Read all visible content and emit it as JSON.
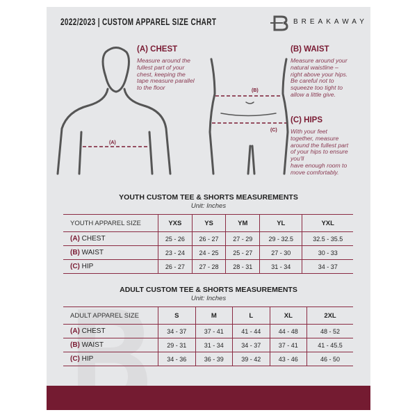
{
  "header": {
    "title": "2022/2023  |  CUSTOM APPAREL SIZE CHART",
    "brand": "BREAKAWAY",
    "logo_letter": "B"
  },
  "guide": {
    "chest": {
      "heading": "(A) CHEST",
      "text": "Measure around the\nfullest part of your\nchest, keeping the\ntape measure parallel\nto the floor",
      "marker": "(A)"
    },
    "waist": {
      "heading": "(B) WAIST",
      "text": "Measure around your\nnatural waistline –\nright above your hips.\nBe careful not to\nsqueeze too tight to\nallow a little give.",
      "marker": "(B)"
    },
    "hips": {
      "heading": "(C) HIPS",
      "text": "With your feet\ntogether, measure\naround the fullest part\nof your hips to ensure\nyou'll\nhave enough room to\nmove comfortably.",
      "marker": "(C)"
    }
  },
  "colors": {
    "accent": "#741b31",
    "panel": "#e6e7e9"
  },
  "youth": {
    "title": "YOUTH CUSTOM TEE & SHORTS MEASUREMENTS",
    "unit": "Unit: Inches",
    "header": "YOUTH APPAREL SIZE",
    "sizes": [
      "YXS",
      "YS",
      "YM",
      "YL",
      "YXL"
    ],
    "rows": [
      {
        "key": "(A)",
        "label": "CHEST",
        "values": [
          "25 - 26",
          "26 - 27",
          "27 - 29",
          "29 - 32.5",
          "32.5 - 35.5"
        ]
      },
      {
        "key": "(B)",
        "label": "WAIST",
        "values": [
          "23 - 24",
          "24 - 25",
          "25 - 27",
          "27 - 30",
          "30 - 33"
        ]
      },
      {
        "key": "(C)",
        "label": "HIP",
        "values": [
          "26 - 27",
          "27 - 28",
          "28 - 31",
          "31 - 34",
          "34 - 37"
        ]
      }
    ]
  },
  "adult": {
    "title": "ADULT CUSTOM TEE & SHORTS MEASUREMENTS",
    "unit": "Unit: Inches",
    "header": "ADULT APPAREL SIZE",
    "sizes": [
      "S",
      "M",
      "L",
      "XL",
      "2XL"
    ],
    "rows": [
      {
        "key": "(A)",
        "label": "CHEST",
        "values": [
          "34 - 37",
          "37 - 41",
          "41 - 44",
          "44 - 48",
          "48 - 52"
        ]
      },
      {
        "key": "(B)",
        "label": "WAIST",
        "values": [
          "29 - 31",
          "31 - 34",
          "34 - 37",
          "37 - 41",
          "41 - 45.5"
        ]
      },
      {
        "key": "(C)",
        "label": "HIP",
        "values": [
          "34 - 36",
          "36 - 39",
          "39 - 42",
          "43 - 46",
          "46 - 50"
        ]
      }
    ]
  }
}
